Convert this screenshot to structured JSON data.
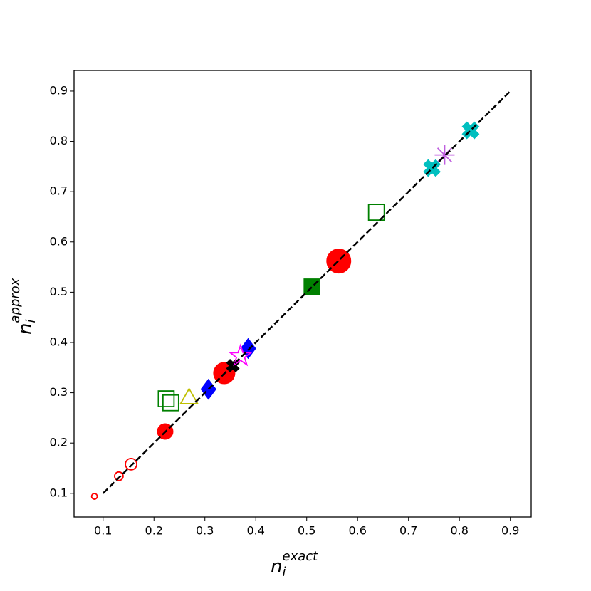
{
  "chart_data": {
    "type": "scatter",
    "xlabel": {
      "base": "n",
      "sub": "i",
      "sup": "exact"
    },
    "ylabel": {
      "base": "n",
      "sub": "i",
      "sup": "approx"
    },
    "xlim": [
      0.043,
      0.941
    ],
    "ylim": [
      0.053,
      0.941
    ],
    "xticks": [
      0.1,
      0.2,
      0.3,
      0.4,
      0.5,
      0.6,
      0.7,
      0.8,
      0.9
    ],
    "yticks": [
      0.1,
      0.2,
      0.3,
      0.4,
      0.5,
      0.6,
      0.7,
      0.8,
      0.9
    ],
    "reference_line": {
      "x": [
        0.1,
        0.9
      ],
      "values": [
        0.1,
        0.9
      ],
      "color": "#000000",
      "dashed": true
    },
    "series": [
      {
        "marker": "circle",
        "color": "#ff0000",
        "filled": false,
        "marker_size": 4,
        "x": [
          0.083
        ],
        "values": [
          0.094
        ]
      },
      {
        "marker": "circle",
        "color": "#ff0000",
        "filled": false,
        "marker_size": 6,
        "x": [
          0.131
        ],
        "values": [
          0.134
        ]
      },
      {
        "marker": "circle",
        "color": "#ff0000",
        "filled": false,
        "marker_size": 8,
        "x": [
          0.155
        ],
        "values": [
          0.158
        ]
      },
      {
        "marker": "circle",
        "color": "#ff0000",
        "filled": true,
        "marker_size": 11,
        "x": [
          0.222
        ],
        "values": [
          0.223
        ]
      },
      {
        "marker": "circle",
        "color": "#ff0000",
        "filled": true,
        "marker_size": 15,
        "x": [
          0.338
        ],
        "values": [
          0.339
        ]
      },
      {
        "marker": "circle",
        "color": "#ff0000",
        "filled": true,
        "marker_size": 17,
        "x": [
          0.563
        ],
        "values": [
          0.562
        ]
      },
      {
        "marker": "square",
        "color": "#008000",
        "filled": false,
        "marker_size": 11,
        "x": [
          0.224,
          0.233,
          0.637
        ],
        "values": [
          0.288,
          0.28,
          0.659
        ]
      },
      {
        "marker": "square",
        "color": "#008000",
        "filled": true,
        "marker_size": 11,
        "x": [
          0.51
        ],
        "values": [
          0.511
        ]
      },
      {
        "marker": "triangle",
        "color": "#bfbf00",
        "filled": false,
        "marker_size": 12,
        "x": [
          0.269
        ],
        "values": [
          0.291
        ]
      },
      {
        "marker": "diamond",
        "color": "#0000ff",
        "filled": true,
        "marker_size": 14,
        "x": [
          0.307,
          0.385
        ],
        "values": [
          0.307,
          0.388
        ]
      },
      {
        "marker": "x",
        "color": "#000000",
        "filled": true,
        "marker_size": 9,
        "x": [
          0.355
        ],
        "values": [
          0.354
        ]
      },
      {
        "marker": "star",
        "color": "#ff00ff",
        "filled": false,
        "marker_size": 15,
        "x": [
          0.37
        ],
        "values": [
          0.373
        ]
      },
      {
        "marker": "asterisk",
        "color": "#bf5fdf",
        "filled": false,
        "marker_size": 14,
        "x": [
          0.771
        ],
        "values": [
          0.773
        ]
      },
      {
        "marker": "x",
        "color": "#00bfbf",
        "filled": true,
        "marker_size": 12,
        "x": [
          0.746,
          0.822
        ],
        "values": [
          0.747,
          0.822
        ]
      }
    ]
  }
}
